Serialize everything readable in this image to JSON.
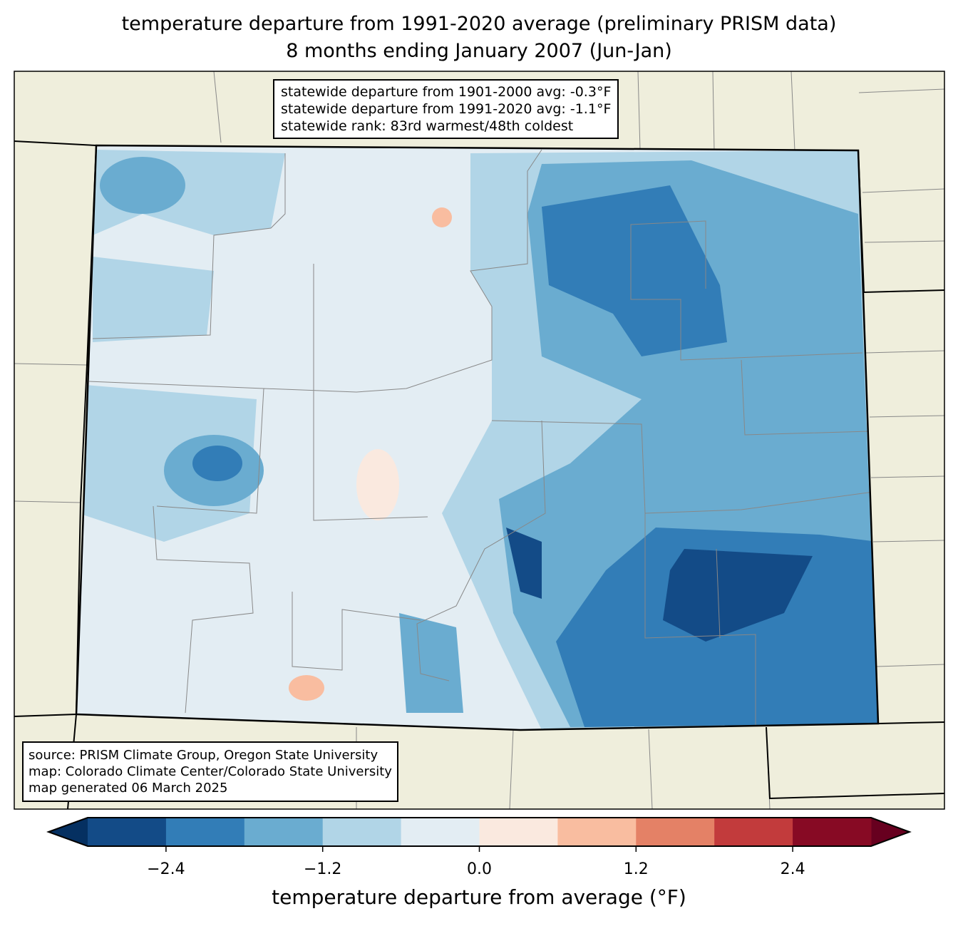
{
  "title_line1": "temperature departure from 1991-2020 average (preliminary PRISM data)",
  "title_line2": "8 months ending January 2007 (Jun-Jan)",
  "info": {
    "line1": "statewide departure from 1901-2000 avg: -0.3°F",
    "line2": "statewide departure from 1991-2020 avg: -1.1°F",
    "line3": "statewide rank: 83rd warmest/48th coldest"
  },
  "source": {
    "line1": "source: PRISM Climate Group, Oregon State University",
    "line2": "map: Colorado Climate Center/Colorado State University",
    "line3": "map generated 06 March 2025"
  },
  "colorbar": {
    "label": "temperature departure from average (°F)",
    "bounds": [
      -3.0,
      -2.4,
      -1.8,
      -1.2,
      -0.6,
      0.0,
      0.6,
      1.2,
      1.8,
      2.4,
      3.0
    ],
    "colors": [
      "#134b87",
      "#327db7",
      "#6aacd0",
      "#b1d5e7",
      "#e3edf3",
      "#fae9df",
      "#f9bda0",
      "#e48166",
      "#c23b3c",
      "#870a24"
    ],
    "under_color": "#053061",
    "over_color": "#67001f",
    "ticks": [
      "−2.4",
      "−1.2",
      "0.0",
      "1.2",
      "2.4"
    ],
    "tick_values": [
      -2.4,
      -1.2,
      0.0,
      1.2,
      2.4
    ]
  },
  "colors": {
    "land": "#efeedc"
  }
}
